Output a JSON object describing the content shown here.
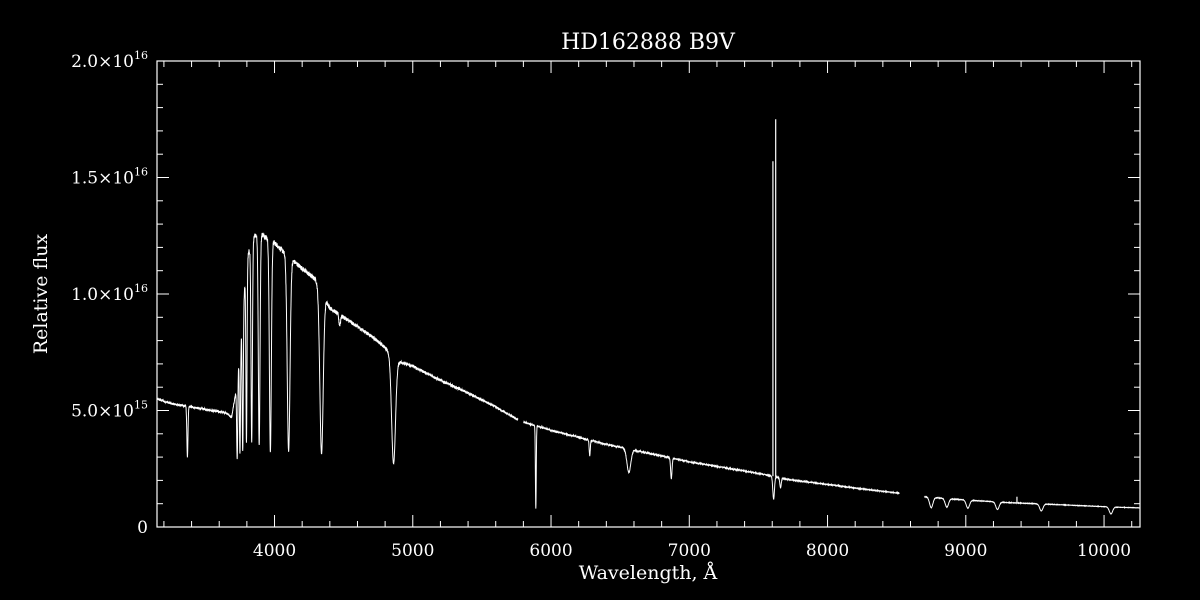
{
  "chart_data": {
    "type": "line",
    "title": "HD162888   B9V",
    "xlabel": "Wavelength, Å",
    "ylabel": "Relative flux",
    "xlim": [
      3150,
      10260
    ],
    "ylim": [
      0,
      2e+16
    ],
    "x_ticks": [
      {
        "value": 4000,
        "label": "4000"
      },
      {
        "value": 5000,
        "label": "5000"
      },
      {
        "value": 6000,
        "label": "6000"
      },
      {
        "value": 7000,
        "label": "7000"
      },
      {
        "value": 8000,
        "label": "8000"
      },
      {
        "value": 9000,
        "label": "9000"
      },
      {
        "value": 10000,
        "label": "10000"
      }
    ],
    "x_minor_step": 200,
    "y_ticks": [
      {
        "value": 0,
        "mantissa": "0",
        "exponent": ""
      },
      {
        "value": 5000000000000000.0,
        "mantissa": "5.0×10",
        "exponent": "15"
      },
      {
        "value": 1e+16,
        "mantissa": "1.0×10",
        "exponent": "16"
      },
      {
        "value": 1.5e+16,
        "mantissa": "1.5×10",
        "exponent": "16"
      },
      {
        "value": 2e+16,
        "mantissa": "2.0×10",
        "exponent": "16"
      }
    ],
    "y_minor_step": 1000000000000000.0,
    "grid": false,
    "colors": {
      "background": "#000000",
      "line": "#ffffff",
      "axes": "#ffffff"
    },
    "series": [
      {
        "x": [
          3150,
          3250,
          3350,
          3500,
          3650,
          3690,
          3720,
          3760,
          3800,
          3850,
          3900,
          3950,
          4000,
          4050,
          4100,
          4200,
          4300,
          4400,
          4500,
          4600,
          4700,
          4800,
          4900,
          5000,
          5200,
          5400,
          5600,
          5760,
          5800,
          6000,
          6200,
          6400,
          6600,
          6800,
          7000,
          7200,
          7400,
          7550,
          7700,
          7900,
          8100,
          8300,
          8520,
          8700,
          8900,
          9100,
          9300,
          9500,
          9700,
          9900,
          10100,
          10260
        ],
        "y": [
          5500000000000000.0,
          5300000000000000.0,
          5200000000000000.0,
          5050000000000000.0,
          4900000000000000.0,
          4700000000000000.0,
          5800000000000000.0,
          8500000000000000.0,
          1.15e+16,
          1.25e+16,
          1.26e+16,
          1.24e+16,
          1.22e+16,
          1.19e+16,
          1.16e+16,
          1.11e+16,
          1.06e+16,
          9400000000000000.0,
          9000000000000000.0,
          8600000000000000.0,
          8200000000000000.0,
          7700000000000000.0,
          7100000000000000.0,
          6900000000000000.0,
          6300000000000000.0,
          5750000000000000.0,
          5150000000000000.0,
          4600000000000000.0,
          4500000000000000.0,
          4150000000000000.0,
          3850000000000000.0,
          3550000000000000.0,
          3300000000000000.0,
          3050000000000000.0,
          2800000000000000.0,
          2600000000000000.0,
          2400000000000000.0,
          2250000000000000.0,
          2050000000000000.0,
          1900000000000000.0,
          1750000000000000.0,
          1600000000000000.0,
          1450000000000000.0,
          1300000000000000.0,
          1200000000000000.0,
          1120000000000000.0,
          1050000000000000.0,
          1000000000000000.0,
          950000000000000.0,
          900000000000000.0,
          850000000000000.0,
          820000000000000.0
        ],
        "gaps": [
          [
            5760,
            5800
          ],
          [
            8520,
            8700
          ]
        ],
        "absorption_lines": [
          {
            "x": 3370,
            "depth": 0.42,
            "width": 4
          },
          {
            "x": 3730,
            "depth": 0.55,
            "width": 4
          },
          {
            "x": 3750,
            "depth": 0.6,
            "width": 4
          },
          {
            "x": 3770,
            "depth": 0.65,
            "width": 4
          },
          {
            "x": 3797,
            "depth": 0.68,
            "width": 4
          },
          {
            "x": 3835,
            "depth": 0.7,
            "width": 5
          },
          {
            "x": 3889,
            "depth": 0.72,
            "width": 6
          },
          {
            "x": 3970,
            "depth": 0.74,
            "width": 7
          },
          {
            "x": 4102,
            "depth": 0.72,
            "width": 10
          },
          {
            "x": 4340,
            "depth": 0.69,
            "width": 12
          },
          {
            "x": 4471,
            "depth": 0.05,
            "width": 6
          },
          {
            "x": 4861,
            "depth": 0.63,
            "width": 14
          },
          {
            "x": 5890,
            "depth": 0.82,
            "width": 3
          },
          {
            "x": 6280,
            "depth": 0.18,
            "width": 4
          },
          {
            "x": 6563,
            "depth": 0.3,
            "width": 14
          },
          {
            "x": 6870,
            "depth": 0.3,
            "width": 5
          },
          {
            "x": 7610,
            "depth": 0.45,
            "width": 6
          },
          {
            "x": 7660,
            "depth": 0.2,
            "width": 5
          },
          {
            "x": 8750,
            "depth": 0.35,
            "width": 12
          },
          {
            "x": 8863,
            "depth": 0.3,
            "width": 12
          },
          {
            "x": 9015,
            "depth": 0.3,
            "width": 12
          },
          {
            "x": 9229,
            "depth": 0.3,
            "width": 12
          },
          {
            "x": 9546,
            "depth": 0.3,
            "width": 12
          },
          {
            "x": 10050,
            "depth": 0.35,
            "width": 12
          }
        ],
        "spikes": [
          {
            "x": 7605,
            "y": 1.57e+16
          },
          {
            "x": 7625,
            "y": 1.75e+16
          },
          {
            "x": 9370,
            "y": 1300000000000000.0
          }
        ]
      }
    ]
  }
}
